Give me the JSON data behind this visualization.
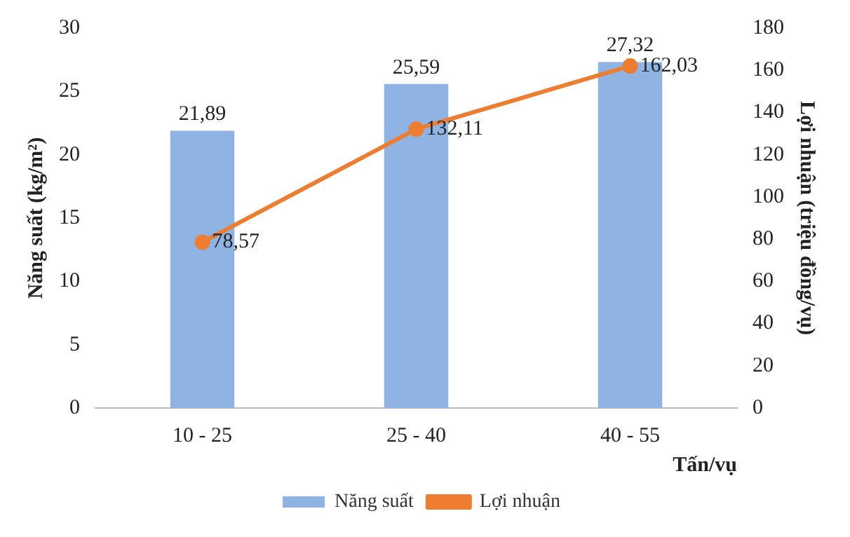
{
  "chart_data": {
    "type": "bar",
    "categories": [
      "10 - 25",
      "25 - 40",
      "40 - 55"
    ],
    "xlabel": "Tấn/vụ",
    "ylabel": "Năng suất (kg/m²)",
    "y2label": "Lợi nhuận (triệu đồng/vụ)",
    "series": [
      {
        "name": "Năng suất",
        "color": "#8fb4e3",
        "values": [
          21.89,
          25.59,
          27.32
        ],
        "value_labels": [
          "21,89",
          "25,59",
          "27,32"
        ]
      },
      {
        "name": "Lợi nhuận",
        "type": "line",
        "axis": "y2",
        "color": "#ed7d31",
        "marker": "circle",
        "values": [
          78.57,
          132.11,
          162.03
        ],
        "value_labels": [
          "78,57",
          "132,11",
          "162,03"
        ]
      }
    ],
    "ylim": [
      0,
      30
    ],
    "yticks": [
      0,
      5,
      10,
      15,
      20,
      25,
      30
    ],
    "y2lim": [
      0,
      180
    ],
    "y2ticks": [
      0,
      20,
      40,
      60,
      80,
      100,
      120,
      140,
      160,
      180
    ],
    "grid": false,
    "legend": "bottom"
  }
}
